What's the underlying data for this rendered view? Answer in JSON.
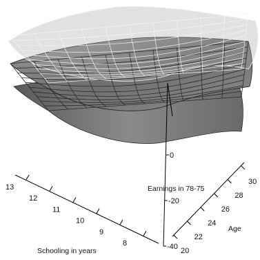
{
  "chart_data": {
    "type": "surface-3d",
    "title": "",
    "axes": {
      "x": {
        "label": "Schooling in years",
        "ticks": [
          8,
          9,
          10,
          11,
          12,
          13
        ]
      },
      "y": {
        "label": "Age",
        "ticks": [
          20,
          22,
          24,
          26,
          28,
          30
        ]
      },
      "z": {
        "label": "Earnings in 78-75",
        "ticks": [
          -40,
          -20,
          0
        ]
      }
    },
    "surfaces": [
      {
        "role": "upper-band",
        "color": "#f2f2f2"
      },
      {
        "role": "estimate",
        "color": "#8a8a8a"
      },
      {
        "role": "lower-band",
        "color": "#777777"
      }
    ],
    "grid": false,
    "legend": "none"
  }
}
